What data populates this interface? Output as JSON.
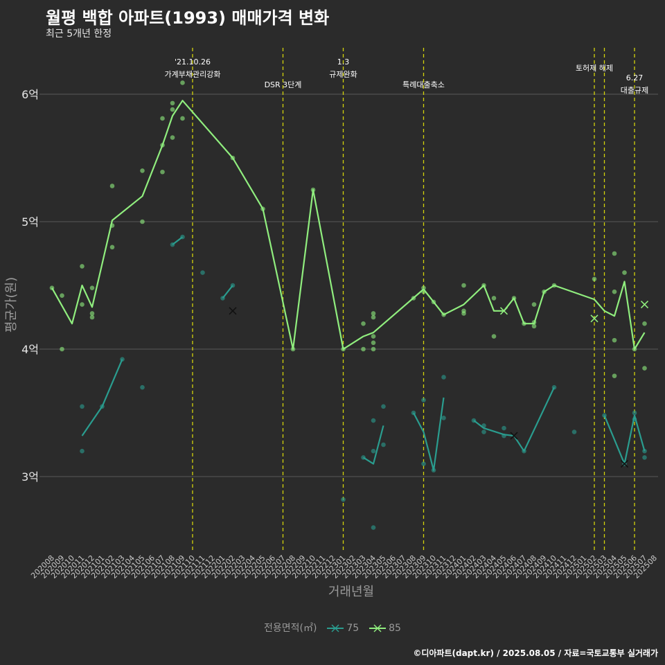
{
  "header": {
    "title": "월평 백합 아파트(1993) 매매가격 변화",
    "subtitle": "최근 5개년 한정"
  },
  "caption": "©디아파트(dapt.kr) / 2025.08.05 / 자료=국토교통부 실거래가",
  "legend": {
    "title": "전용면적(㎡)",
    "items": [
      "75",
      "85"
    ]
  },
  "colors": {
    "background": "#2b2b2b",
    "grid": "#5a5a5a",
    "s75": "#2a9d8f",
    "s85": "#90ee7e",
    "event": "#d4d40a"
  },
  "chart_data": {
    "type": "line",
    "title": "월평 백합 아파트(1993) 매매가격 변화",
    "subtitle": "최근 5개년 한정",
    "xlabel": "거래년월",
    "ylabel": "평균가(원)",
    "categories": [
      "202008",
      "202009",
      "202010",
      "202011",
      "202012",
      "202101",
      "202102",
      "202103",
      "202104",
      "202105",
      "202106",
      "202107",
      "202108",
      "202109",
      "202110",
      "202111",
      "202112",
      "202201",
      "202202",
      "202203",
      "202204",
      "202205",
      "202206",
      "202207",
      "202208",
      "202209",
      "202210",
      "202211",
      "202212",
      "202301",
      "202302",
      "202303",
      "202304",
      "202305",
      "202306",
      "202307",
      "202308",
      "202309",
      "202310",
      "202311",
      "202312",
      "202401",
      "202402",
      "202403",
      "202404",
      "202405",
      "202406",
      "202407",
      "202408",
      "202409",
      "202410",
      "202411",
      "202412",
      "202501",
      "202502",
      "202503",
      "202504",
      "202505",
      "202506",
      "202507",
      "202508"
    ],
    "y_ticks": [
      {
        "value": 3,
        "label": "3억"
      },
      {
        "value": 4,
        "label": "4억"
      },
      {
        "value": 5,
        "label": "5억"
      },
      {
        "value": 6,
        "label": "6억"
      }
    ],
    "ylim": [
      2.45,
      6.5
    ],
    "grid": true,
    "legend_position": "bottom",
    "events": [
      {
        "month": "202110",
        "label": "'21.10.26\n가계부채관리강화"
      },
      {
        "month": "202207",
        "label": "DSR 3단계"
      },
      {
        "month": "202301",
        "label": "1.3\n규제완화"
      },
      {
        "month": "202309",
        "label": "특례대출축소"
      },
      {
        "month": "202502",
        "label": "토허제 해제"
      },
      {
        "month": "202503",
        "label": ""
      },
      {
        "month": "202506",
        "label": "6.27\n대출규제"
      }
    ],
    "series": [
      {
        "name": "75",
        "line_segments": [
          [
            [
              "202011",
              3.32
            ],
            [
              "202101",
              3.55
            ],
            [
              "202103",
              3.92
            ]
          ],
          [
            [
              "202108",
              4.82
            ],
            [
              "202109",
              4.88
            ]
          ],
          [
            [
              "202201",
              4.4
            ],
            [
              "202202",
              4.5
            ]
          ],
          [
            [
              "202303",
              3.15
            ],
            [
              "202304",
              3.1
            ],
            [
              "202305",
              3.4
            ]
          ],
          [
            [
              "202308",
              3.5
            ],
            [
              "202309",
              3.35
            ],
            [
              "202310",
              3.05
            ],
            [
              "202311",
              3.62
            ]
          ],
          [
            [
              "202402",
              3.44
            ],
            [
              "202403",
              3.38
            ],
            [
              "202405",
              3.33
            ],
            [
              "202406",
              3.32
            ],
            [
              "202407",
              3.2
            ],
            [
              "202410",
              3.7
            ]
          ],
          [
            [
              "202503",
              3.48
            ],
            [
              "202505",
              3.1
            ],
            [
              "202506",
              3.48
            ],
            [
              "202507",
              3.2
            ]
          ]
        ],
        "points": [
          [
            "202011",
            3.55
          ],
          [
            "202011",
            3.2
          ],
          [
            "202101",
            3.55
          ],
          [
            "202103",
            3.92
          ],
          [
            "202105",
            3.7
          ],
          [
            "202108",
            4.82
          ],
          [
            "202109",
            4.88
          ],
          [
            "202111",
            4.6
          ],
          [
            "202201",
            4.4
          ],
          [
            "202202",
            4.5
          ],
          [
            "202301",
            2.82
          ],
          [
            "202303",
            3.15
          ],
          [
            "202304",
            3.44
          ],
          [
            "202304",
            3.2
          ],
          [
            "202304",
            2.6
          ],
          [
            "202305",
            3.55
          ],
          [
            "202305",
            3.25
          ],
          [
            "202308",
            3.5
          ],
          [
            "202309",
            3.6
          ],
          [
            "202309",
            3.1
          ],
          [
            "202310",
            3.05
          ],
          [
            "202311",
            3.78
          ],
          [
            "202311",
            3.46
          ],
          [
            "202402",
            3.44
          ],
          [
            "202403",
            3.4
          ],
          [
            "202403",
            3.35
          ],
          [
            "202405",
            3.38
          ],
          [
            "202405",
            3.32
          ],
          [
            "202407",
            3.2
          ],
          [
            "202410",
            3.7
          ],
          [
            "202412",
            3.35
          ],
          [
            "202503",
            3.48
          ],
          [
            "202505",
            3.1
          ],
          [
            "202506",
            3.5
          ],
          [
            "202506",
            3.45
          ],
          [
            "202507",
            3.2
          ],
          [
            "202507",
            3.15
          ]
        ],
        "cancelled": [
          [
            "202202",
            4.3
          ],
          [
            "202406",
            3.32
          ],
          [
            "202505",
            3.1
          ]
        ]
      },
      {
        "name": "85",
        "line_segments": [
          [
            [
              "202008",
              4.48
            ],
            [
              "202010",
              4.2
            ],
            [
              "202011",
              4.5
            ],
            [
              "202012",
              4.33
            ],
            [
              "202102",
              5.01
            ],
            [
              "202105",
              5.2
            ],
            [
              "202107",
              5.6
            ],
            [
              "202108",
              5.83
            ],
            [
              "202109",
              5.95
            ],
            [
              "202202",
              5.5
            ],
            [
              "202205",
              5.1
            ],
            [
              "202208",
              4.0
            ],
            [
              "202210",
              5.25
            ],
            [
              "202301",
              4.0
            ],
            [
              "202303",
              4.1
            ],
            [
              "202304",
              4.13
            ],
            [
              "202309",
              4.47
            ],
            [
              "202310",
              4.37
            ],
            [
              "202311",
              4.27
            ],
            [
              "202401",
              4.35
            ],
            [
              "202403",
              4.5
            ],
            [
              "202404",
              4.3
            ],
            [
              "202405",
              4.3
            ],
            [
              "202406",
              4.4
            ],
            [
              "202407",
              4.2
            ],
            [
              "202408",
              4.2
            ],
            [
              "202409",
              4.45
            ],
            [
              "202410",
              4.5
            ],
            [
              "202502",
              4.39
            ],
            [
              "202503",
              4.3
            ],
            [
              "202504",
              4.26
            ],
            [
              "202505",
              4.53
            ],
            [
              "202506",
              4.0
            ],
            [
              "202507",
              4.13
            ]
          ]
        ],
        "points": [
          [
            "202008",
            4.48
          ],
          [
            "202009",
            4.42
          ],
          [
            "202009",
            4.0
          ],
          [
            "202011",
            4.65
          ],
          [
            "202011",
            4.35
          ],
          [
            "202012",
            4.48
          ],
          [
            "202012",
            4.28
          ],
          [
            "202012",
            4.25
          ],
          [
            "202102",
            5.28
          ],
          [
            "202102",
            4.97
          ],
          [
            "202102",
            4.8
          ],
          [
            "202105",
            5.4
          ],
          [
            "202105",
            5.0
          ],
          [
            "202107",
            5.81
          ],
          [
            "202107",
            5.6
          ],
          [
            "202107",
            5.39
          ],
          [
            "202108",
            5.93
          ],
          [
            "202108",
            5.88
          ],
          [
            "202108",
            5.66
          ],
          [
            "202109",
            6.09
          ],
          [
            "202109",
            5.81
          ],
          [
            "202202",
            5.5
          ],
          [
            "202205",
            5.1
          ],
          [
            "202208",
            4.0
          ],
          [
            "202210",
            5.25
          ],
          [
            "202301",
            4.0
          ],
          [
            "202303",
            4.2
          ],
          [
            "202303",
            4.0
          ],
          [
            "202304",
            4.28
          ],
          [
            "202304",
            4.25
          ],
          [
            "202304",
            4.1
          ],
          [
            "202304",
            4.05
          ],
          [
            "202304",
            4.0
          ],
          [
            "202308",
            4.4
          ],
          [
            "202309",
            4.48
          ],
          [
            "202309",
            4.45
          ],
          [
            "202310",
            4.37
          ],
          [
            "202311",
            4.27
          ],
          [
            "202401",
            4.5
          ],
          [
            "202401",
            4.3
          ],
          [
            "202401",
            4.28
          ],
          [
            "202403",
            4.5
          ],
          [
            "202404",
            4.4
          ],
          [
            "202404",
            4.1
          ],
          [
            "202406",
            4.4
          ],
          [
            "202407",
            4.2
          ],
          [
            "202408",
            4.35
          ],
          [
            "202408",
            4.21
          ],
          [
            "202408",
            4.18
          ],
          [
            "202409",
            4.45
          ],
          [
            "202410",
            4.5
          ],
          [
            "202502",
            4.55
          ],
          [
            "202504",
            4.75
          ],
          [
            "202504",
            4.45
          ],
          [
            "202504",
            4.07
          ],
          [
            "202504",
            3.79
          ],
          [
            "202505",
            4.6
          ],
          [
            "202506",
            4.0
          ],
          [
            "202507",
            4.2
          ],
          [
            "202507",
            3.85
          ]
        ],
        "cancelled": [
          [
            "202405",
            4.3
          ],
          [
            "202502",
            4.24
          ],
          [
            "202507",
            4.35
          ]
        ]
      }
    ]
  }
}
